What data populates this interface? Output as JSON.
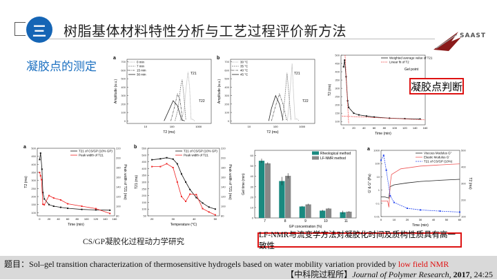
{
  "header": {
    "section_number": "三",
    "title": "树脂基体材料特性分析与工艺过程评价新方法",
    "logo_text": "SAAST"
  },
  "section_title": "凝胶点的测定",
  "judge_label": "凝胶点判断",
  "captions": {
    "left": "CS/GP凝胶化过程动力学研究",
    "right": "LF-NMR与流变学方法对凝胶化时间及质构性质具有高一致性"
  },
  "footer": {
    "prefix": "题目：",
    "title": "Sol–gel transition characterization of thermosensitive hydrogels based on water mobility variation provided by ",
    "title_highlight": "low field NMR",
    "source": "【中科院过程所】",
    "journal": "Journal of Polymer Research",
    "year": "2017",
    "volume": ", 24:25",
    "highlight_color": "#e01010"
  },
  "colors": {
    "accent_blue": "#1565b5",
    "section_blue": "#1a6fc0",
    "caption_red": "#dd1111",
    "footer_bg": "#d9d9d9"
  },
  "chart_data": [
    {
      "id": "c1",
      "type": "line",
      "panel": "a",
      "xlabel": "T2 (ms)",
      "ylabel": "Amplitude (a.u.)",
      "xscale": "log",
      "xlim": [
        2,
        3000
      ],
      "ylim": [
        -30,
        730
      ],
      "xticks": [
        10,
        100,
        1000
      ],
      "yticks": [
        0,
        100,
        200,
        300,
        400,
        500,
        600,
        700
      ],
      "legend": "top-left",
      "annotations": [
        "T21",
        "T22"
      ],
      "series": [
        {
          "name": "0 min",
          "color": "#999",
          "dash": "1,1",
          "points": [
            [
              200,
              0
            ],
            [
              280,
              100
            ],
            [
              340,
              400
            ],
            [
              400,
              580
            ],
            [
              460,
              400
            ],
            [
              520,
              20
            ],
            [
              600,
              20
            ],
            [
              700,
              0
            ]
          ]
        },
        {
          "name": "7 min",
          "color": "#777",
          "dash": "2,1",
          "points": [
            [
              130,
              0
            ],
            [
              170,
              150
            ],
            [
              210,
              400
            ],
            [
              240,
              490
            ],
            [
              280,
              300
            ],
            [
              330,
              10
            ]
          ]
        },
        {
          "name": "15 min",
          "color": "#555",
          "dash": "3,1,1,1",
          "points": [
            [
              90,
              0
            ],
            [
              120,
              150
            ],
            [
              160,
              320
            ],
            [
              200,
              250
            ],
            [
              250,
              10
            ]
          ]
        },
        {
          "name": "30 min",
          "color": "#222",
          "dash": "",
          "points": [
            [
              50,
              0
            ],
            [
              70,
              100
            ],
            [
              110,
              240
            ],
            [
              160,
              180
            ],
            [
              230,
              10
            ],
            [
              300,
              0
            ]
          ]
        }
      ]
    },
    {
      "id": "c2",
      "type": "line",
      "panel": "b",
      "xlabel": "T2 (ms)",
      "ylabel": "Amplitude (a.u.)",
      "xscale": "log",
      "xlim": [
        2,
        3000
      ],
      "ylim": [
        -30,
        730
      ],
      "xticks": [
        10,
        100,
        1000
      ],
      "yticks": [
        0,
        100,
        200,
        300,
        400,
        500,
        600,
        700
      ],
      "legend": "top-left",
      "annotations": [
        "T21",
        "T22"
      ],
      "series": [
        {
          "name": "30 °C",
          "color": "#999",
          "dash": "1,1",
          "points": [
            [
              280,
              0
            ],
            [
              340,
              300
            ],
            [
              420,
              680
            ],
            [
              480,
              300
            ],
            [
              540,
              20
            ],
            [
              650,
              25
            ],
            [
              750,
              0
            ]
          ]
        },
        {
          "name": "35 °C",
          "color": "#777",
          "dash": "2,1",
          "points": [
            [
              180,
              0
            ],
            [
              220,
              250
            ],
            [
              270,
              570
            ],
            [
              320,
              300
            ],
            [
              380,
              10
            ]
          ]
        },
        {
          "name": "40 °C",
          "color": "#555",
          "dash": "3,1,1,1",
          "points": [
            [
              70,
              0
            ],
            [
              100,
              180
            ],
            [
              140,
              320
            ],
            [
              190,
              200
            ],
            [
              260,
              10
            ]
          ]
        },
        {
          "name": "45 °C",
          "color": "#222",
          "dash": "",
          "points": [
            [
              55,
              0
            ],
            [
              70,
              150
            ],
            [
              100,
              300
            ],
            [
              140,
              200
            ],
            [
              190,
              10
            ]
          ]
        }
      ]
    },
    {
      "id": "c3",
      "type": "line",
      "xlabel": "Time (min)",
      "ylabel": "T2 (ms)",
      "xlim": [
        -5,
        160
      ],
      "ylim": [
        80,
        500
      ],
      "xticks": [
        0,
        20,
        40,
        60,
        80,
        100,
        120,
        140,
        160
      ],
      "yticks": [
        100,
        150,
        200,
        250,
        300,
        350,
        400,
        450,
        500
      ],
      "legend": "top-right",
      "annotations": [
        "Gel point"
      ],
      "series": [
        {
          "name": "Weighted average value of T21",
          "color": "#111",
          "dash": "",
          "marker": true,
          "points": [
            [
              0,
              430
            ],
            [
              2,
              470
            ],
            [
              5,
              370
            ],
            [
              8,
              225
            ],
            [
              10,
              185
            ],
            [
              20,
              150
            ],
            [
              30,
              140
            ],
            [
              45,
              133
            ],
            [
              60,
              127
            ],
            [
              90,
              120
            ],
            [
              120,
              117
            ],
            [
              150,
              115
            ]
          ]
        },
        {
          "name": "Linear fit of T2",
          "color": "#e33",
          "dash": "1.5,1",
          "points": [
            [
              3,
              500
            ],
            [
              10,
              90
            ]
          ]
        },
        {
          "name": "",
          "color": "#e33",
          "dash": "1.5,1",
          "points": [
            [
              -3,
              133
            ],
            [
              160,
              110
            ]
          ]
        }
      ]
    },
    {
      "id": "c4",
      "type": "line",
      "panel": "a",
      "xlabel": "Time (min)",
      "ylabel": "T2 (ms)",
      "y2label": "Peak width of T21 (ms)",
      "xlim": [
        -5,
        160
      ],
      "ylim": [
        80,
        500
      ],
      "y2lim": [
        80,
        220
      ],
      "xticks": [
        0,
        20,
        40,
        60,
        80,
        100,
        120,
        140,
        160
      ],
      "yticks": [
        100,
        150,
        200,
        250,
        300,
        350,
        400,
        450,
        500
      ],
      "y2ticks": [
        80,
        100,
        120,
        140,
        160,
        180,
        200,
        220
      ],
      "legend": "top-right",
      "series": [
        {
          "name": "T21 of CS/GP (10% GP)",
          "color": "#111",
          "marker": true,
          "points": [
            [
              0,
              430
            ],
            [
              2,
              470
            ],
            [
              5,
              370
            ],
            [
              7,
              225
            ],
            [
              10,
              185
            ],
            [
              20,
              150
            ],
            [
              30,
              140
            ],
            [
              45,
              133
            ],
            [
              60,
              127
            ],
            [
              90,
              120
            ],
            [
              120,
              117
            ],
            [
              150,
              115
            ]
          ]
        },
        {
          "name": "Peak width of T21",
          "color": "#e22",
          "marker": true,
          "axis": "y2",
          "points": [
            [
              0,
              170
            ],
            [
              2,
              163
            ],
            [
              4,
              155
            ],
            [
              7,
              104
            ],
            [
              10,
              103
            ],
            [
              20,
              122
            ],
            [
              30,
              117
            ],
            [
              45,
              113
            ],
            [
              60,
              105
            ],
            [
              90,
              100
            ],
            [
              120,
              95
            ],
            [
              150,
              85
            ]
          ]
        }
      ]
    },
    {
      "id": "c5",
      "type": "line",
      "panel": "b",
      "xlabel": "Temperature (°C)",
      "ylabel": "T21 (ms)",
      "y2label": "Peak width of T21 (ms)",
      "xlim": [
        18,
        52
      ],
      "ylim": [
        50,
        550
      ],
      "y2lim": [
        80,
        220
      ],
      "xticks": [
        20,
        30,
        40,
        50
      ],
      "yticks": [
        50,
        100,
        150,
        200,
        250,
        300,
        350,
        400,
        450,
        500,
        550
      ],
      "y2ticks": [
        80,
        100,
        120,
        140,
        160,
        180,
        200,
        220
      ],
      "legend": "top-right",
      "series": [
        {
          "name": "T21 of CS/GP (10% GP)",
          "color": "#111",
          "marker": true,
          "points": [
            [
              20,
              465
            ],
            [
              24,
              472
            ],
            [
              27,
              480
            ],
            [
              30,
              470
            ],
            [
              32,
              435
            ],
            [
              34,
              360
            ],
            [
              36,
              300
            ],
            [
              38,
              245
            ],
            [
              41,
              185
            ],
            [
              44,
              145
            ],
            [
              47,
              115
            ],
            [
              50,
              100
            ]
          ]
        },
        {
          "name": "Peak width of T21",
          "color": "#e22",
          "marker": true,
          "axis": "y2",
          "points": [
            [
              20,
              182
            ],
            [
              24,
              182
            ],
            [
              27,
              188
            ],
            [
              30,
              180
            ],
            [
              32,
              150
            ],
            [
              34,
              120
            ],
            [
              36,
              110
            ],
            [
              38,
              125
            ],
            [
              41,
              124
            ],
            [
              44,
              95
            ],
            [
              47,
              88
            ],
            [
              50,
              82
            ]
          ]
        }
      ]
    },
    {
      "id": "c6",
      "type": "bar",
      "xlabel": "GP concentration (%)",
      "ylabel": "Gel time (min)",
      "categories": [
        "7",
        "8",
        "9",
        "10",
        "11"
      ],
      "ylim": [
        0,
        65
      ],
      "yticks": [
        0,
        10,
        20,
        30,
        40,
        50,
        60
      ],
      "legend": "top-right",
      "series": [
        {
          "name": "Rheological method",
          "color": "#1a8a80",
          "values": [
            55,
            35.5,
            11,
            7,
            5.5
          ],
          "errors": [
            2,
            4,
            0.5,
            0.8,
            1.5
          ]
        },
        {
          "name": "LF-NMR method",
          "color": "#888",
          "values": [
            52.5,
            40.5,
            13,
            9,
            6
          ],
          "errors": [
            1,
            2.5,
            0.7,
            0.5,
            0.5
          ]
        }
      ]
    },
    {
      "id": "c7",
      "type": "line",
      "panel": "a",
      "xlabel": "Time (min)",
      "ylabel": "G' & G'' (Pa)",
      "y2label": "T2 (ms)",
      "yscale": "log",
      "xlim": [
        0,
        60
      ],
      "ylim": [
        0.01,
        1000
      ],
      "y2lim": [
        100,
        500
      ],
      "xticks": [
        0,
        10,
        20,
        30,
        40,
        50,
        60
      ],
      "yticks": [
        0.01,
        0.1,
        1,
        10,
        100,
        1000
      ],
      "y2ticks": [
        100,
        200,
        300,
        400,
        500
      ],
      "legend": "top-right",
      "series": [
        {
          "name": "Viscous Modulus G\"",
          "color": "#222",
          "points": [
            [
              0,
              0.3
            ],
            [
              3,
              0.3
            ],
            [
              6,
              0.25
            ],
            [
              7,
              1.8
            ],
            [
              10,
              2.5
            ],
            [
              20,
              3.5
            ],
            [
              30,
              4.5
            ],
            [
              45,
              5.5
            ],
            [
              60,
              6.5
            ]
          ]
        },
        {
          "name": "Elastic Modulus G'",
          "color": "#e55",
          "points": [
            [
              0,
              0.15
            ],
            [
              5,
              0.15
            ],
            [
              6,
              0.05
            ],
            [
              7,
              3
            ],
            [
              8,
              15
            ],
            [
              15,
              40
            ],
            [
              30,
              65
            ],
            [
              45,
              80
            ],
            [
              60,
              95
            ]
          ]
        },
        {
          "name": "T21 of CS/GP (10%)",
          "color": "#2244ee",
          "dash": "2,1",
          "marker": true,
          "axis": "y2",
          "points": [
            [
              0,
              440
            ],
            [
              2,
              470
            ],
            [
              4,
              380
            ],
            [
              7,
              225
            ],
            [
              10,
              185
            ],
            [
              20,
              150
            ],
            [
              30,
              140
            ],
            [
              45,
              133
            ],
            [
              60,
              127
            ]
          ]
        }
      ]
    }
  ]
}
